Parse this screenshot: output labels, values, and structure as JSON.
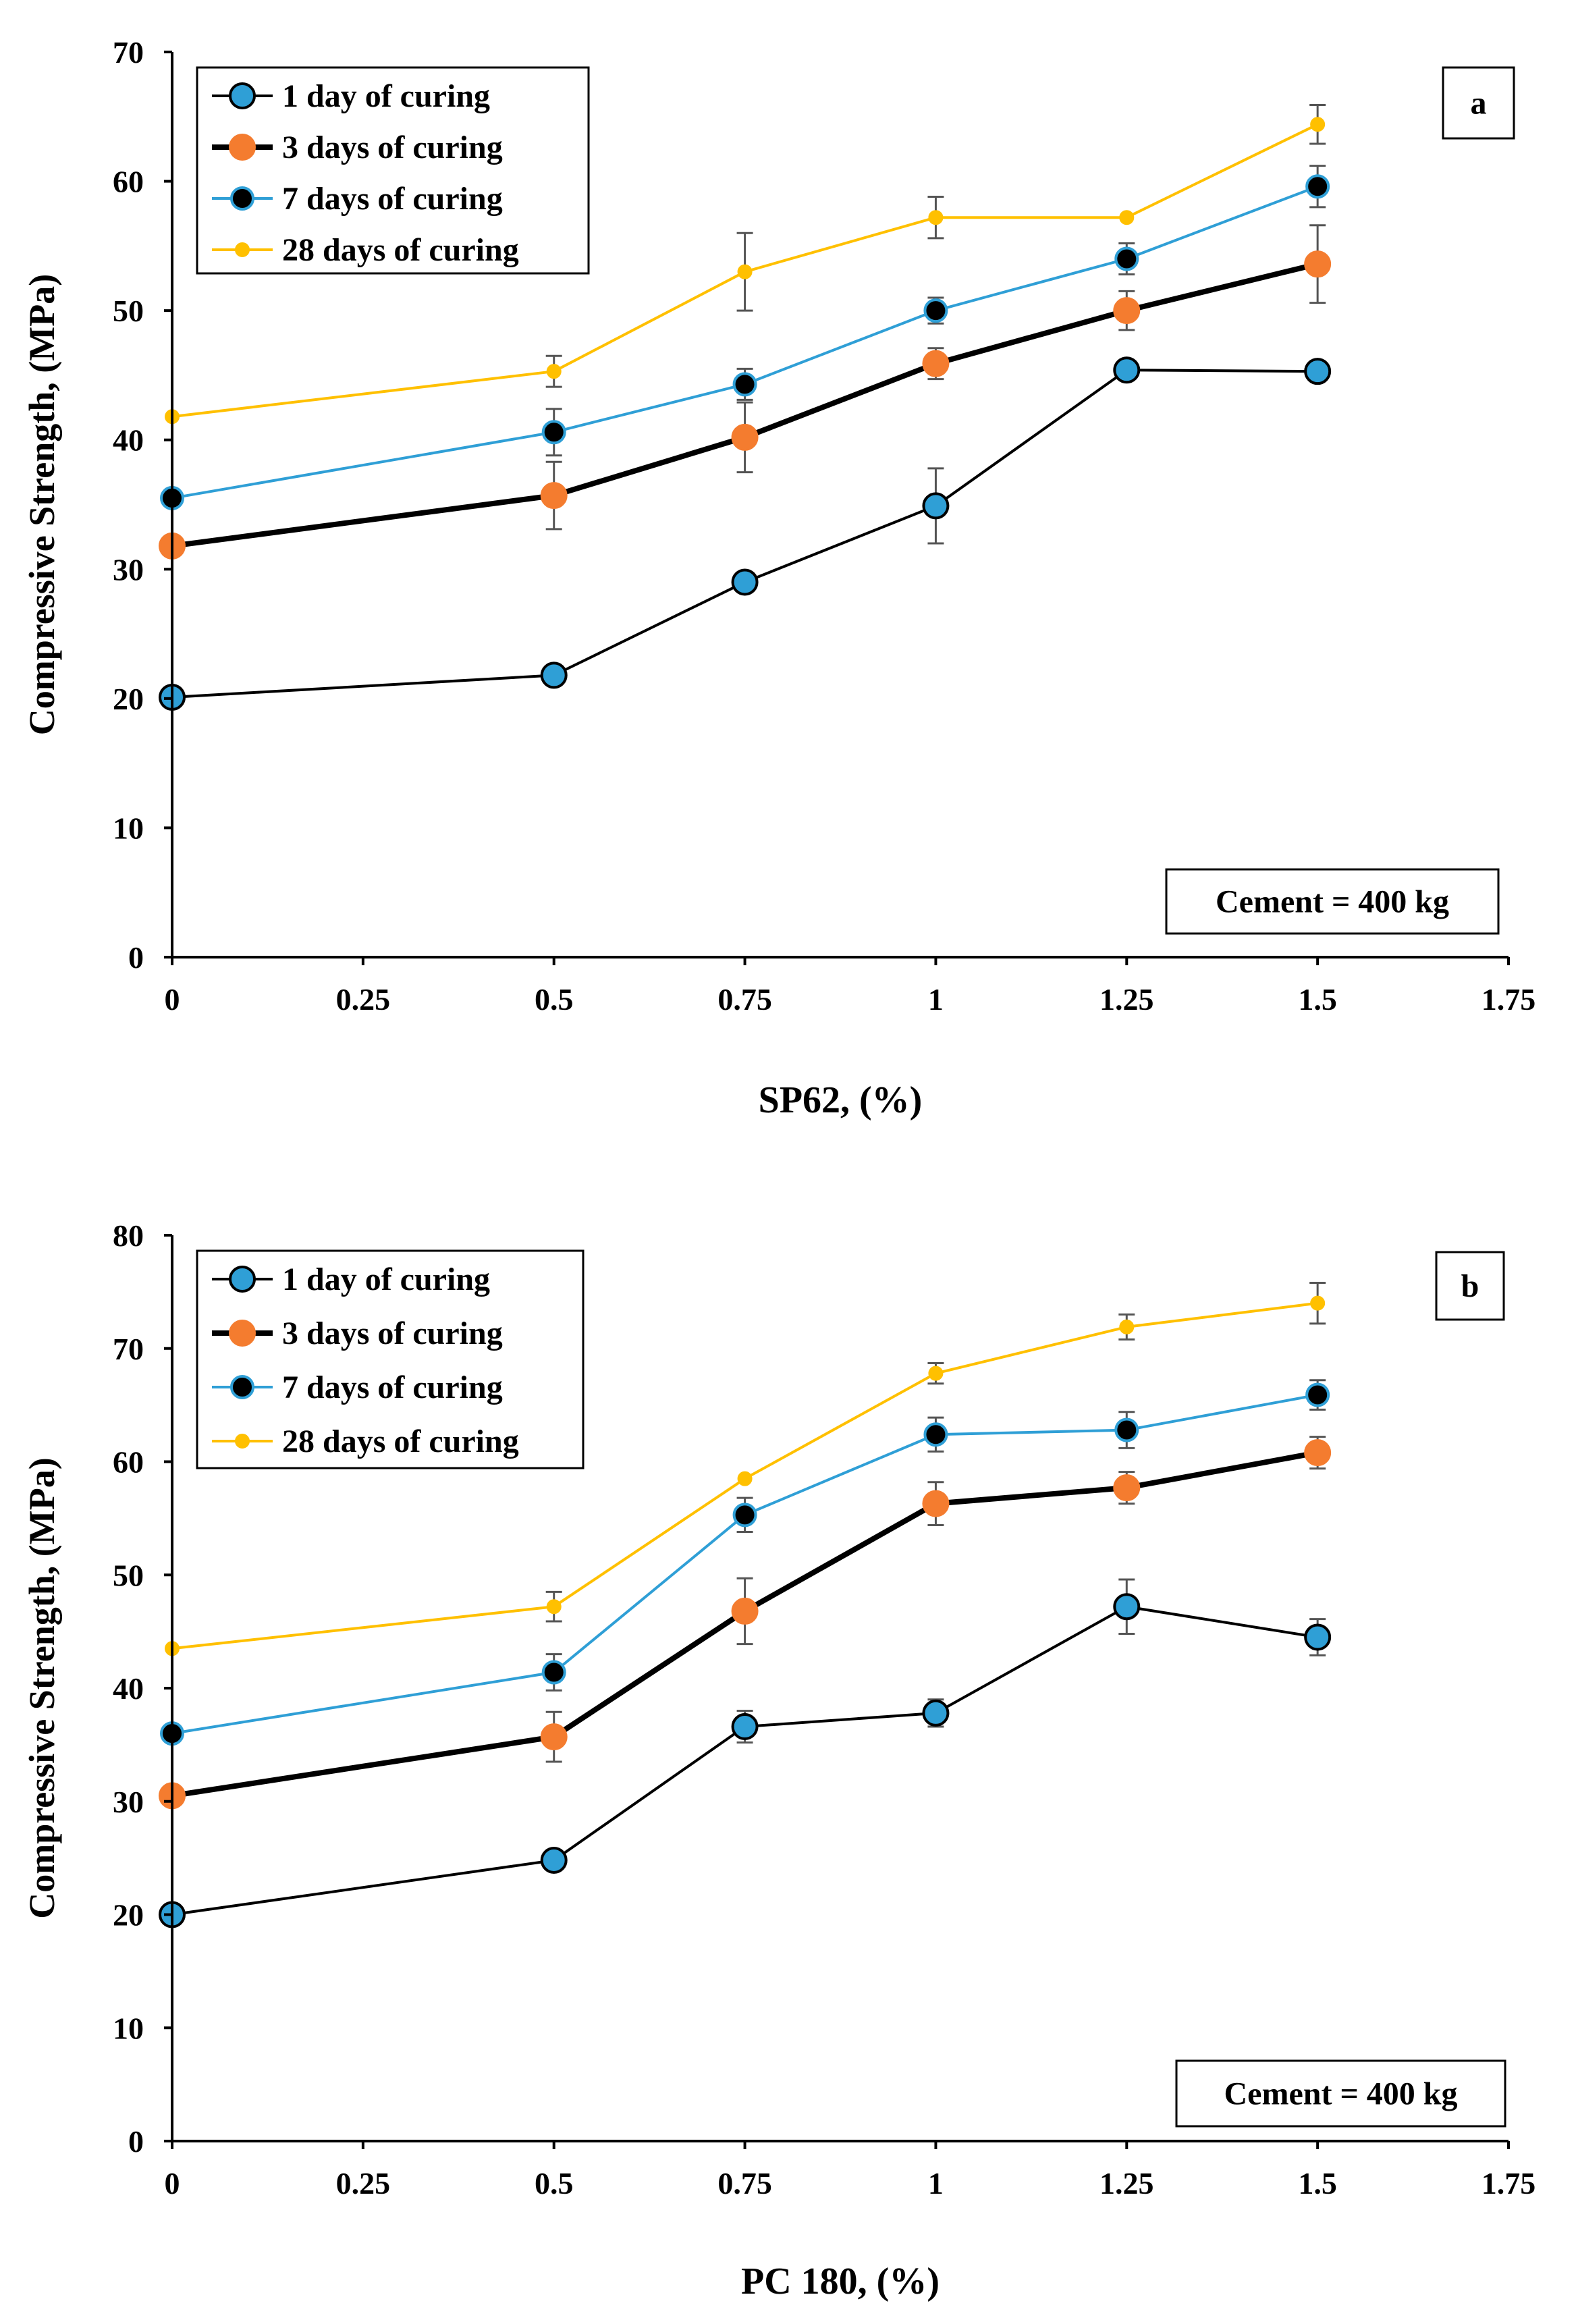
{
  "chart_data": [
    {
      "type": "line",
      "panel_label": "a",
      "xlabel": "SP62, (%)",
      "ylabel": "Compressive  Strength, (MPa)",
      "xlim": [
        0,
        1.75
      ],
      "ylim": [
        0,
        70
      ],
      "xticks": [
        0,
        0.25,
        0.5,
        0.75,
        1,
        1.25,
        1.5,
        1.75
      ],
      "xtick_labels": [
        "0",
        "0.25",
        "0.5",
        "0.75",
        "1",
        "1.25",
        "1.5",
        "1.75"
      ],
      "yticks": [
        0,
        10,
        20,
        30,
        40,
        50,
        60,
        70
      ],
      "ytick_labels": [
        "0",
        "10",
        "20",
        "30",
        "40",
        "50",
        "60",
        "70"
      ],
      "annotation": "Cement = 400 kg",
      "x": [
        0,
        0.5,
        0.75,
        1,
        1.25,
        1.5
      ],
      "series": [
        {
          "name": "1 day of curing",
          "values": [
            20.1,
            21.8,
            29.0,
            34.9,
            45.4,
            45.3
          ],
          "errors": [
            0,
            0,
            0,
            2.9,
            0,
            0
          ],
          "line_color": "#000000",
          "line_weight": "thin",
          "marker_fill": "#2f9fd6",
          "marker_stroke": "#000000",
          "marker_size": "large"
        },
        {
          "name": "3 days of curing",
          "values": [
            31.8,
            35.7,
            40.2,
            45.9,
            50.0,
            53.6
          ],
          "errors": [
            0,
            2.6,
            2.7,
            1.2,
            1.5,
            3.0
          ],
          "line_color": "#000000",
          "line_weight": "thick",
          "marker_fill": "#f47c2f",
          "marker_stroke": "#f47c2f",
          "marker_size": "large"
        },
        {
          "name": "7 days of curing",
          "values": [
            35.5,
            40.6,
            44.3,
            50.0,
            54.0,
            59.6
          ],
          "errors": [
            0,
            1.8,
            1.2,
            1.0,
            1.2,
            1.6
          ],
          "line_color": "#2f9fd6",
          "line_weight": "thin",
          "marker_fill": "#000000",
          "marker_stroke": "#2f9fd6",
          "marker_size": "medium"
        },
        {
          "name": "28 days of curing",
          "values": [
            41.8,
            45.3,
            53.0,
            57.2,
            57.2,
            64.4
          ],
          "errors": [
            0,
            1.2,
            3.0,
            1.6,
            0,
            1.5
          ],
          "line_color": "#ffc000",
          "line_weight": "thin",
          "marker_fill": "#ffc000",
          "marker_stroke": "#ffc000",
          "marker_size": "small"
        }
      ]
    },
    {
      "type": "line",
      "panel_label": "b",
      "xlabel": "PC 180, (%)",
      "ylabel": "Compressive  Strength, (MPa)",
      "xlim": [
        0,
        1.75
      ],
      "ylim": [
        0,
        80
      ],
      "xticks": [
        0,
        0.25,
        0.5,
        0.75,
        1,
        1.25,
        1.5,
        1.75
      ],
      "xtick_labels": [
        "0",
        "0.25",
        "0.5",
        "0.75",
        "1",
        "1.25",
        "1.5",
        "1.75"
      ],
      "yticks": [
        0,
        10,
        20,
        30,
        40,
        50,
        60,
        70,
        80
      ],
      "ytick_labels": [
        "0",
        "10",
        "20",
        "30",
        "40",
        "50",
        "60",
        "70",
        "80"
      ],
      "annotation": "Cement = 400 kg",
      "x": [
        0,
        0.5,
        0.75,
        1,
        1.25,
        1.5
      ],
      "series": [
        {
          "name": "1 day of curing",
          "values": [
            20.0,
            24.8,
            36.6,
            37.8,
            47.2,
            44.5
          ],
          "errors": [
            0,
            0.8,
            1.4,
            1.2,
            2.4,
            1.6
          ],
          "line_color": "#000000",
          "line_weight": "thin",
          "marker_fill": "#2f9fd6",
          "marker_stroke": "#000000",
          "marker_size": "large"
        },
        {
          "name": "3 days of curing",
          "values": [
            30.5,
            35.7,
            46.8,
            56.3,
            57.7,
            60.8
          ],
          "errors": [
            0,
            2.2,
            2.9,
            1.9,
            1.4,
            1.4
          ],
          "line_color": "#000000",
          "line_weight": "thick",
          "marker_fill": "#f47c2f",
          "marker_stroke": "#f47c2f",
          "marker_size": "large"
        },
        {
          "name": "7 days of curing",
          "values": [
            36.0,
            41.4,
            55.3,
            62.4,
            62.8,
            65.9
          ],
          "errors": [
            0,
            1.6,
            1.5,
            1.5,
            1.6,
            1.3
          ],
          "line_color": "#2f9fd6",
          "line_weight": "thin",
          "marker_fill": "#000000",
          "marker_stroke": "#2f9fd6",
          "marker_size": "medium"
        },
        {
          "name": "28 days of curing",
          "values": [
            43.5,
            47.2,
            58.5,
            67.8,
            71.9,
            74.0
          ],
          "errors": [
            0,
            1.3,
            0,
            0.9,
            1.1,
            1.8
          ],
          "line_color": "#ffc000",
          "line_weight": "thin",
          "marker_fill": "#ffc000",
          "marker_stroke": "#ffc000",
          "marker_size": "small"
        }
      ]
    }
  ]
}
